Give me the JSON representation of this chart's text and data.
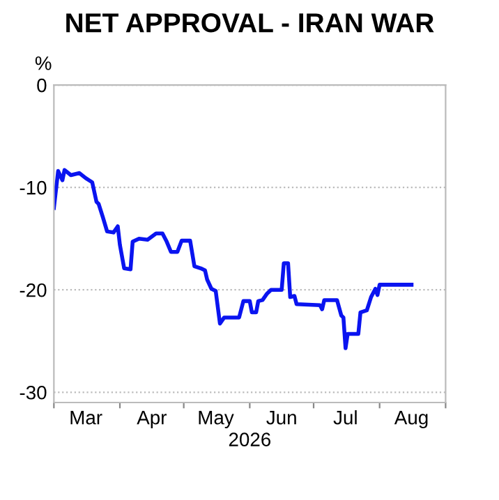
{
  "chart_data": {
    "type": "line",
    "title": "NET APPROVAL - IRAN WAR",
    "ylabel": "%",
    "xlabel": "2026",
    "x": [
      "2026-03-01",
      "2026-03-03",
      "2026-03-05",
      "2026-03-06",
      "2026-03-09",
      "2026-03-13",
      "2026-03-16",
      "2026-03-19",
      "2026-03-21",
      "2026-03-22",
      "2026-03-24",
      "2026-03-26",
      "2026-03-29",
      "2026-03-31",
      "2026-04-01",
      "2026-04-03",
      "2026-04-06",
      "2026-04-07",
      "2026-04-10",
      "2026-04-14",
      "2026-04-18",
      "2026-04-21",
      "2026-04-23",
      "2026-04-25",
      "2026-04-28",
      "2026-04-30",
      "2026-05-04",
      "2026-05-06",
      "2026-05-09",
      "2026-05-11",
      "2026-05-12",
      "2026-05-14",
      "2026-05-16",
      "2026-05-18",
      "2026-05-20",
      "2026-05-27",
      "2026-05-29",
      "2026-06-01",
      "2026-06-02",
      "2026-06-04",
      "2026-06-05",
      "2026-06-07",
      "2026-06-09",
      "2026-06-11",
      "2026-06-16",
      "2026-06-17",
      "2026-06-19",
      "2026-06-20",
      "2026-06-22",
      "2026-06-23",
      "2026-07-04",
      "2026-07-05",
      "2026-07-06",
      "2026-07-12",
      "2026-07-14",
      "2026-07-15",
      "2026-07-16",
      "2026-07-17",
      "2026-07-22",
      "2026-07-23",
      "2026-07-26",
      "2026-07-28",
      "2026-07-30",
      "2026-07-31",
      "2026-08-01",
      "2026-08-16"
    ],
    "series": [
      {
        "color": "#0a14f0",
        "values": [
          -12.0,
          -8.4,
          -9.3,
          -8.3,
          -8.8,
          -8.6,
          -9.1,
          -9.5,
          -11.4,
          -11.6,
          -12.9,
          -14.3,
          -14.4,
          -13.8,
          -15.6,
          -17.9,
          -18.0,
          -15.3,
          -15.0,
          -15.1,
          -14.5,
          -14.5,
          -15.3,
          -16.3,
          -16.3,
          -15.2,
          -15.2,
          -17.7,
          -17.9,
          -18.1,
          -19.0,
          -19.9,
          -20.1,
          -23.3,
          -22.7,
          -22.7,
          -21.1,
          -21.1,
          -22.2,
          -22.2,
          -21.1,
          -21.0,
          -20.4,
          -20.0,
          -20.0,
          -17.4,
          -17.4,
          -20.7,
          -20.6,
          -21.4,
          -21.5,
          -21.9,
          -21.0,
          -21.0,
          -22.5,
          -22.7,
          -25.7,
          -24.3,
          -24.3,
          -22.2,
          -22.0,
          -20.7,
          -19.9,
          -20.5,
          -19.5,
          -19.5
        ]
      }
    ],
    "xlim": [
      "2026-03-01",
      "2026-09-01"
    ],
    "xticks": [
      {
        "value": "2026-03-01",
        "label": null
      },
      {
        "value": "2026-03-16",
        "label": "Mar"
      },
      {
        "value": "2026-04-01",
        "label": null
      },
      {
        "value": "2026-04-16",
        "label": "Apr"
      },
      {
        "value": "2026-05-01",
        "label": null
      },
      {
        "value": "2026-05-16",
        "label": "May"
      },
      {
        "value": "2026-06-01",
        "label": null
      },
      {
        "value": "2026-06-16",
        "label": "Jun"
      },
      {
        "value": "2026-07-01",
        "label": null
      },
      {
        "value": "2026-07-16",
        "label": "Jul"
      },
      {
        "value": "2026-08-01",
        "label": null
      },
      {
        "value": "2026-08-16",
        "label": "Aug"
      },
      {
        "value": "2026-09-01",
        "label": null
      }
    ],
    "ylim": [
      -31,
      0
    ],
    "yticks": [
      0,
      -10,
      -20,
      -30
    ],
    "grid": "y",
    "line_style": "solid"
  }
}
